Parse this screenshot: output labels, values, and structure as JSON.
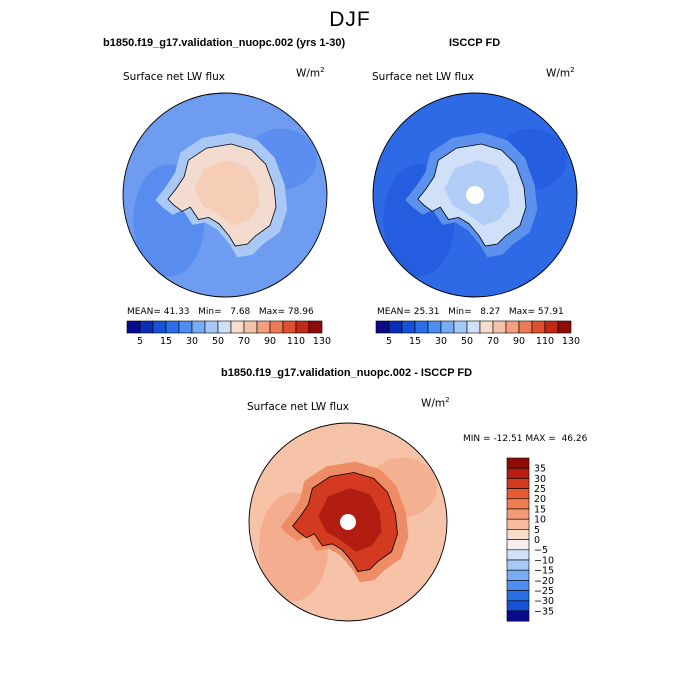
{
  "season_title": "DJF",
  "chart_data": [
    {
      "type": "heatmap",
      "title": "b1850.f19_g17.validation_nuopc.002 (yrs 1-30)",
      "variable": "Surface net LW flux",
      "units": "W/m",
      "units_exponent": "2",
      "stats": {
        "mean_label": "MEAN=",
        "mean": "41.33",
        "min_label": "Min=",
        "min": "7.68",
        "max_label": "Max=",
        "max": "78.96"
      },
      "colorbar": {
        "orientation": "horizontal",
        "levels": [
          5,
          15,
          30,
          50,
          70,
          90,
          110,
          130
        ],
        "tick_labels": [
          "5",
          "15",
          "30",
          "50",
          "70",
          "90",
          "110",
          "130"
        ],
        "colors": [
          "#0a0a8c",
          "#0b2fb4",
          "#1552d6",
          "#2a6ee8",
          "#4e8ef2",
          "#78acf5",
          "#a6c8f7",
          "#cfe0f7",
          "#f8ddcf",
          "#f5c2aa",
          "#f2a080",
          "#ec7a58",
          "#de5030",
          "#c02818",
          "#8e0c08"
        ]
      },
      "field_colors": {
        "ocean": "#6e9cf0",
        "ocean_dark": "#4f86ee",
        "ice_edge": "#aac8f6",
        "continent": "#f3dccf",
        "continent_warm": "#f6cab2"
      }
    },
    {
      "type": "heatmap",
      "title": "ISCCP FD",
      "variable": "Surface net LW flux",
      "units": "W/m",
      "units_exponent": "2",
      "stats": {
        "mean_label": "MEAN=",
        "mean": "25.31",
        "min_label": "Min=",
        "min": "8.27",
        "max_label": "Max=",
        "max": "57.91"
      },
      "colorbar": {
        "orientation": "horizontal",
        "levels": [
          5,
          15,
          30,
          50,
          70,
          90,
          110,
          130
        ],
        "tick_labels": [
          "5",
          "15",
          "30",
          "50",
          "70",
          "90",
          "110",
          "130"
        ],
        "colors": [
          "#0a0a8c",
          "#0b2fb4",
          "#1552d6",
          "#2a6ee8",
          "#4e8ef2",
          "#78acf5",
          "#a6c8f7",
          "#cfe0f7",
          "#f8ddcf",
          "#f5c2aa",
          "#f2a080",
          "#ec7a58",
          "#de5030",
          "#c02818",
          "#8e0c08"
        ]
      },
      "field_colors": {
        "ocean": "#2f6ae6",
        "ocean_dark": "#1f58dc",
        "ice_edge": "#5c92ee",
        "continent": "#cfe0f8",
        "continent_warm": "#a9c8f6"
      }
    },
    {
      "type": "heatmap",
      "title": "b1850.f19_g17.validation_nuopc.002 - ISCCP FD",
      "variable": "Surface net LW flux",
      "units": "W/m",
      "units_exponent": "2",
      "stats": {
        "min_label": "MIN =",
        "min": "-12.51",
        "max_label": "MAX =",
        "max": "46.26"
      },
      "colorbar": {
        "orientation": "vertical",
        "levels": [
          35,
          30,
          25,
          20,
          15,
          10,
          5,
          0,
          -5,
          -10,
          -15,
          -20,
          -25,
          -30,
          -35
        ],
        "tick_labels": [
          "35",
          "30",
          "25",
          "20",
          "15",
          "10",
          "5",
          "0",
          "−5",
          "−10",
          "−15",
          "−20",
          "−25",
          "−30",
          "−35"
        ],
        "colors": [
          "#8e0c08",
          "#b81c10",
          "#d43a20",
          "#e65a34",
          "#f07c52",
          "#f49c78",
          "#f8bca0",
          "#fadccc",
          "#f5f0ee",
          "#cfe0f7",
          "#a6c8f7",
          "#78acf5",
          "#4e8ef2",
          "#2a6ee8",
          "#1552d6",
          "#0a0a8c"
        ]
      },
      "field_colors": {
        "ocean": "#f7c3a8",
        "ocean_dark": "#f2a584",
        "ice_edge": "#ee8c66",
        "continent": "#d43a20",
        "continent_warm": "#a8180e"
      }
    }
  ]
}
